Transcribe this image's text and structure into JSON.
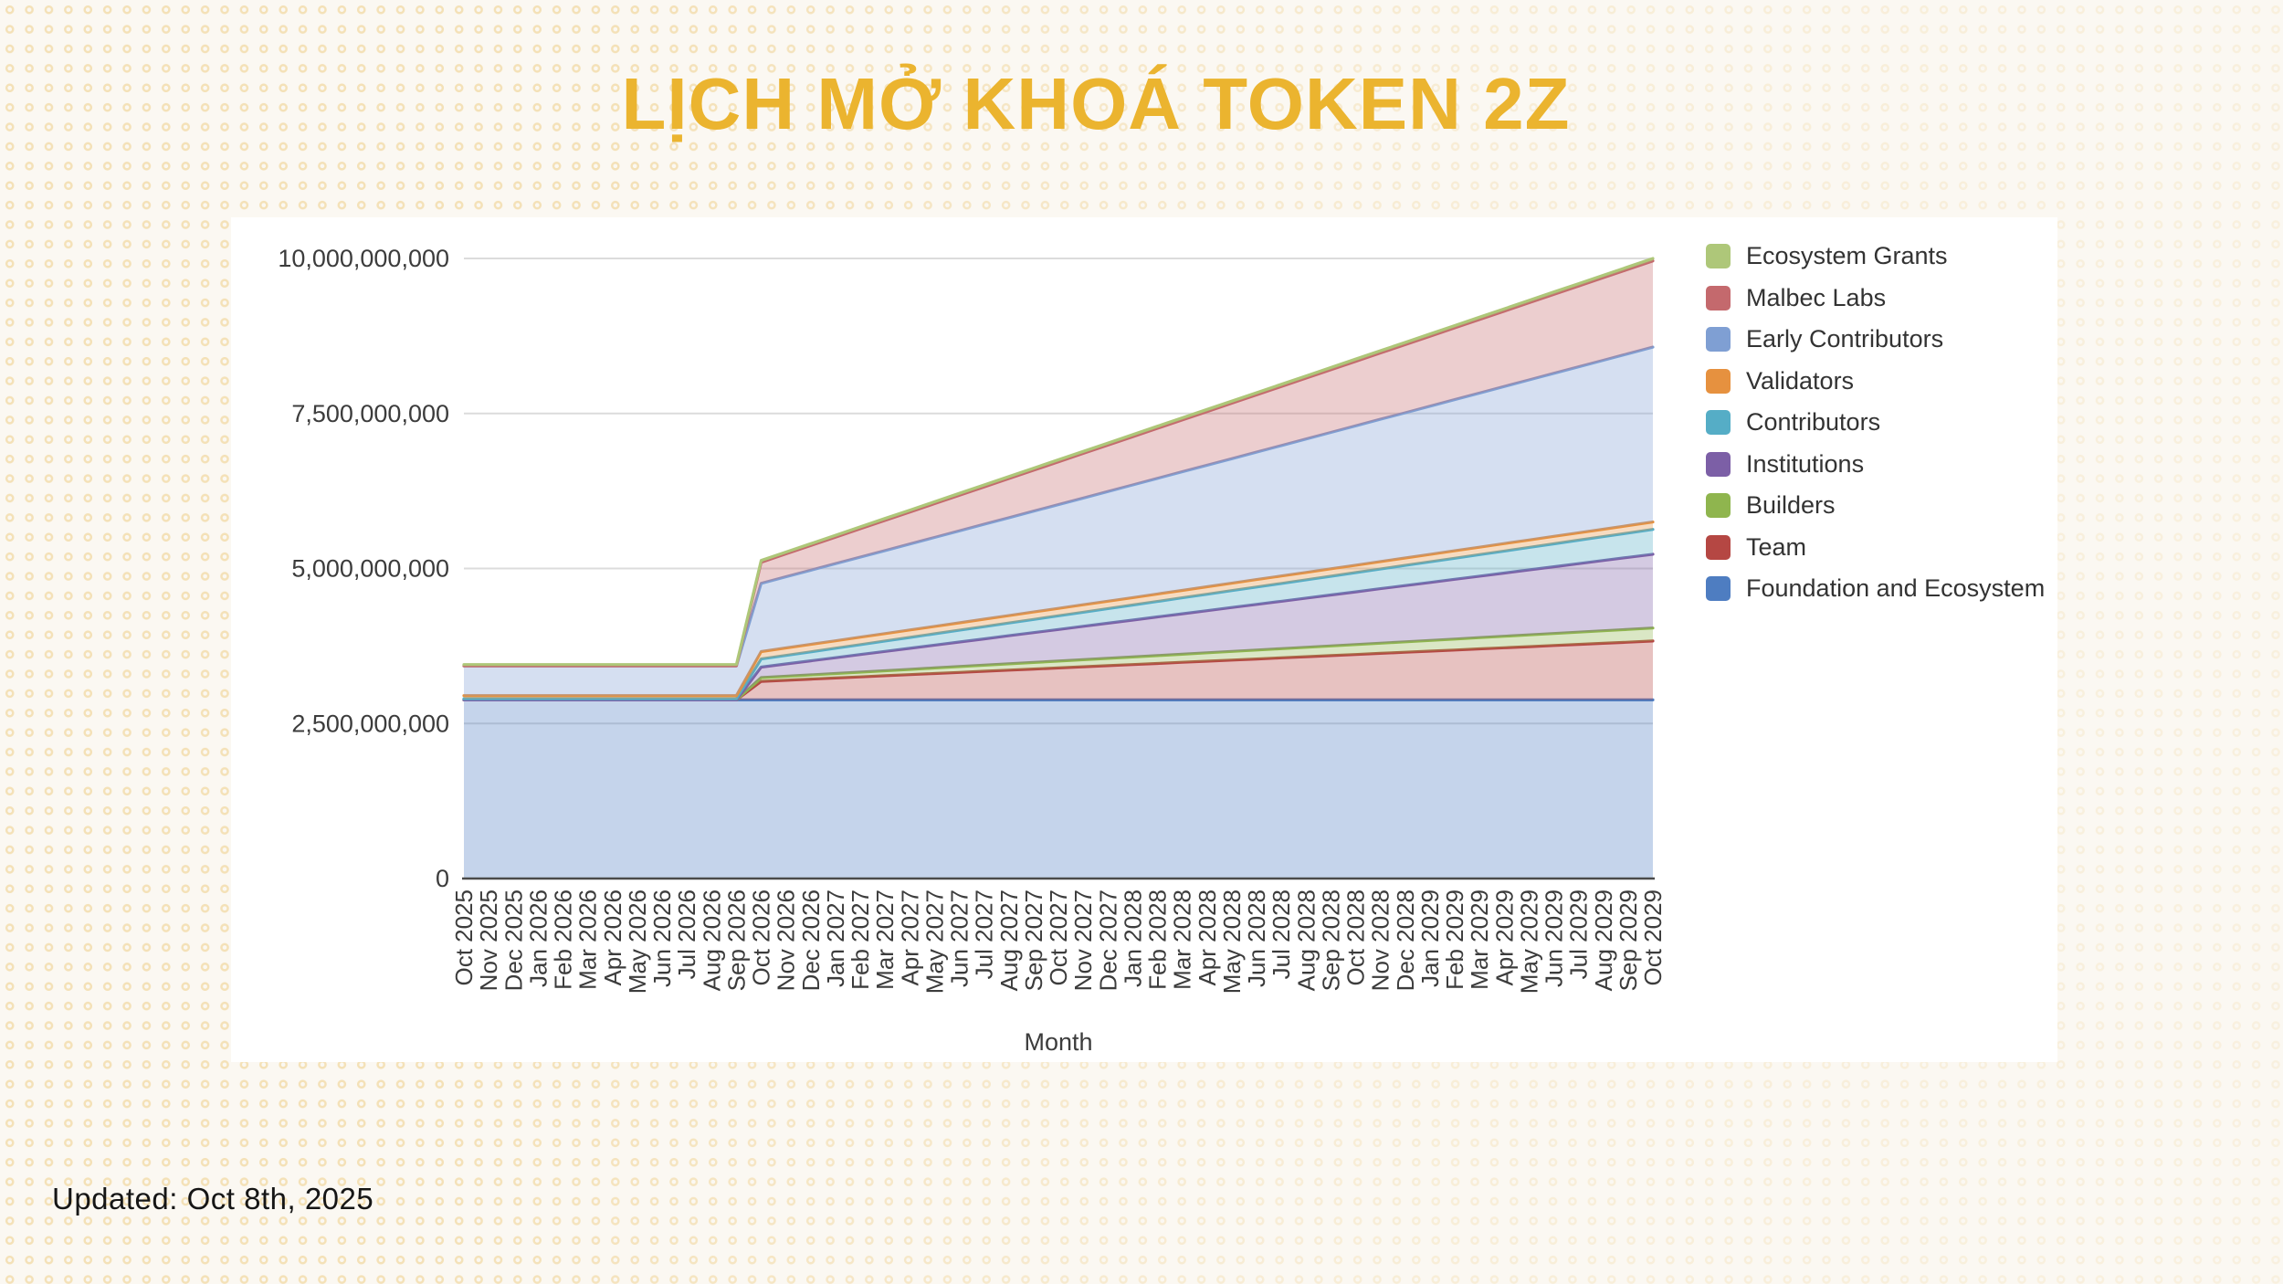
{
  "page": {
    "title": "LỊCH MỞ KHOÁ TOKEN 2Z",
    "updated_label": "Updated: Oct 8th, 2025",
    "accent_color": "#ebb42f",
    "background_color": "#fbf8f2",
    "background_dot_color": "#efd08d",
    "panel_color": "#ffffff"
  },
  "chart_data": {
    "type": "area",
    "stacked": true,
    "title": "LỊCH MỞ KHOÁ TOKEN 2Z",
    "xlabel": "Month",
    "ylabel": "",
    "unit": "tokens",
    "unit_scale_of_values": "billions of tokens",
    "interpolation": "piecewise-linear between breakpoints (flat cliff until Sep 2026, step at Oct 2026, linear vesting to Oct 2029)",
    "ylim": [
      0,
      10000000000
    ],
    "grid": true,
    "legend_position": "right",
    "y_ticks": [
      {
        "label": "0",
        "value": 0
      },
      {
        "label": "2,500,000,000",
        "value": 2.5
      },
      {
        "label": "5,000,000,000",
        "value": 5.0
      },
      {
        "label": "7,500,000,000",
        "value": 7.5
      },
      {
        "label": "10,000,000,000",
        "value": 10.0
      }
    ],
    "x_labels": [
      "Oct 2025",
      "Nov 2025",
      "Dec 2025",
      "Jan 2026",
      "Feb 2026",
      "Mar 2026",
      "Apr 2026",
      "May 2026",
      "Jun 2026",
      "Jul 2026",
      "Aug 2026",
      "Sep 2026",
      "Oct 2026",
      "Nov 2026",
      "Dec 2026",
      "Jan 2027",
      "Feb 2027",
      "Mar 2027",
      "Apr 2027",
      "May 2027",
      "Jun 2027",
      "Jul 2027",
      "Aug 2027",
      "Sep 2027",
      "Oct 2027",
      "Nov 2027",
      "Dec 2027",
      "Jan 2028",
      "Feb 2028",
      "Mar 2028",
      "Apr 2028",
      "May 2028",
      "Jun 2028",
      "Jul 2028",
      "Aug 2028",
      "Sep 2028",
      "Oct 2028",
      "Nov 2028",
      "Dec 2028",
      "Jan 2029",
      "Feb 2029",
      "Mar 2029",
      "Apr 2029",
      "May 2029",
      "Jun 2029",
      "Jul 2029",
      "Aug 2029",
      "Sep 2029",
      "Oct 2029"
    ],
    "legend_top_to_bottom": [
      "Ecosystem Grants",
      "Malbec Labs",
      "Early Contributors",
      "Validators",
      "Contributors",
      "Institutions",
      "Builders",
      "Team",
      "Foundation and Ecosystem"
    ],
    "series": [
      {
        "name": "Foundation and Ecosystem",
        "color": "#4e7dc1",
        "breakpoints_b": [
          [
            "Oct 2025",
            2.88
          ],
          [
            "Sep 2026",
            2.88
          ],
          [
            "Oct 2026",
            2.88
          ],
          [
            "Oct 2029",
            2.88
          ]
        ]
      },
      {
        "name": "Team",
        "color": "#b54743",
        "breakpoints_b": [
          [
            "Oct 2025",
            0
          ],
          [
            "Sep 2026",
            0
          ],
          [
            "Oct 2026",
            0.3
          ],
          [
            "Oct 2029",
            0.95
          ]
        ]
      },
      {
        "name": "Builders",
        "color": "#8fb54e",
        "breakpoints_b": [
          [
            "Oct 2025",
            0
          ],
          [
            "Sep 2026",
            0
          ],
          [
            "Oct 2026",
            0.06
          ],
          [
            "Oct 2029",
            0.21
          ]
        ]
      },
      {
        "name": "Institutions",
        "color": "#7c5fa6",
        "breakpoints_b": [
          [
            "Oct 2025",
            0
          ],
          [
            "Sep 2026",
            0
          ],
          [
            "Oct 2026",
            0.17
          ],
          [
            "Oct 2029",
            1.19
          ]
        ]
      },
      {
        "name": "Contributors",
        "color": "#55adc6",
        "breakpoints_b": [
          [
            "Oct 2025",
            0.02
          ],
          [
            "Sep 2026",
            0.02
          ],
          [
            "Oct 2026",
            0.13
          ],
          [
            "Oct 2029",
            0.4
          ]
        ]
      },
      {
        "name": "Validators",
        "color": "#e6913f",
        "breakpoints_b": [
          [
            "Oct 2025",
            0.05
          ],
          [
            "Sep 2026",
            0.05
          ],
          [
            "Oct 2026",
            0.12
          ],
          [
            "Oct 2029",
            0.12
          ]
        ]
      },
      {
        "name": "Early Contributors",
        "color": "#7f9fd3",
        "breakpoints_b": [
          [
            "Oct 2025",
            0.48
          ],
          [
            "Sep 2026",
            0.48
          ],
          [
            "Oct 2026",
            1.1
          ],
          [
            "Oct 2029",
            2.82
          ]
        ]
      },
      {
        "name": "Malbec Labs",
        "color": "#c4696d",
        "breakpoints_b": [
          [
            "Oct 2025",
            0
          ],
          [
            "Sep 2026",
            0
          ],
          [
            "Oct 2026",
            0.34
          ],
          [
            "Oct 2029",
            1.39
          ]
        ]
      },
      {
        "name": "Ecosystem Grants",
        "color": "#aec779",
        "breakpoints_b": [
          [
            "Oct 2025",
            0.02
          ],
          [
            "Sep 2026",
            0.02
          ],
          [
            "Oct 2026",
            0.03
          ],
          [
            "Oct 2029",
            0.04
          ]
        ]
      }
    ]
  }
}
